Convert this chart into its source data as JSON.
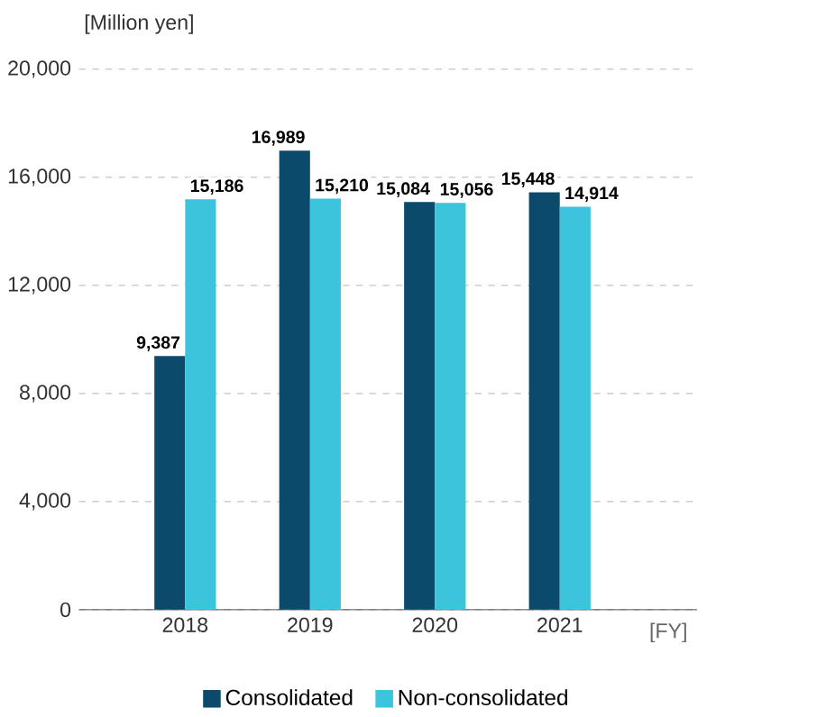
{
  "chart_data": {
    "type": "bar",
    "ylabel": "[Million yen]",
    "xlabel": "[FY]",
    "categories": [
      "2018",
      "2019",
      "2020",
      "2021"
    ],
    "series": [
      {
        "name": "Consolidated",
        "color": "#0b4a6b",
        "values": [
          9387,
          16989,
          15084,
          15448
        ],
        "value_labels": [
          "9,387",
          "16,989",
          "15,084",
          "15,448"
        ]
      },
      {
        "name": "Non-consolidated",
        "color": "#3bc4dc",
        "values": [
          15186,
          15210,
          15056,
          14914
        ],
        "value_labels": [
          "15,186",
          "15,210",
          "15,056",
          "14,914"
        ]
      }
    ],
    "ylim": [
      0,
      20000
    ],
    "yticks": [
      0,
      {
        "value": 4000,
        "label": "4,000"
      },
      {
        "value": 8000,
        "label": "8,000"
      },
      {
        "value": 12000,
        "label": "12,000"
      },
      {
        "value": 16000,
        "label": "16,000"
      },
      {
        "value": 20000,
        "label": "20,000"
      }
    ],
    "grid": "y",
    "legend": "bottom"
  }
}
